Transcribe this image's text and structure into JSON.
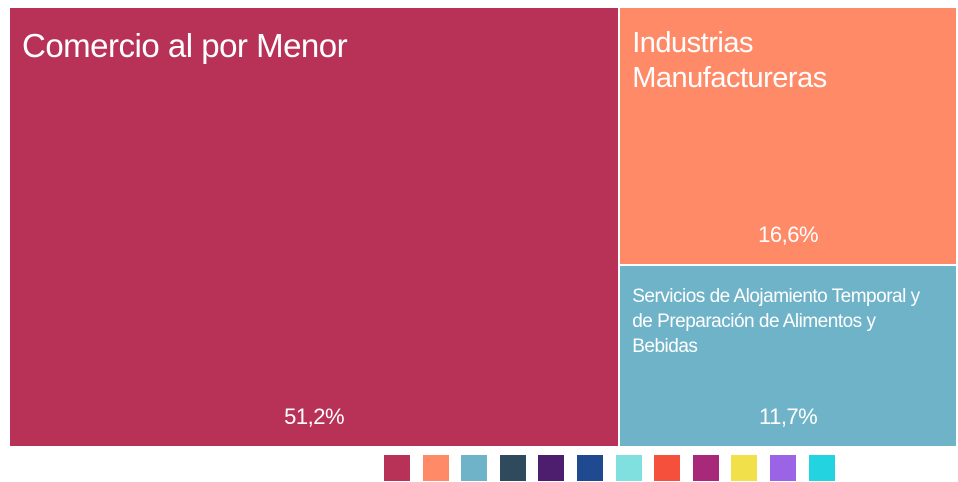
{
  "chart_data": {
    "type": "treemap",
    "categories": [
      "Comercio al por Menor",
      "Industrias Manufactureras",
      "Servicios de Alojamiento Temporal y de Preparación de Alimentos y Bebidas"
    ],
    "values": [
      51.2,
      16.6,
      11.7
    ],
    "value_labels": [
      "51,2%",
      "16,6%",
      "11,7%"
    ],
    "colors": [
      "#b83258",
      "#fe8a68",
      "#6fb3c9"
    ],
    "legend_colors": [
      "#b83258",
      "#fe8a68",
      "#6fb3c9",
      "#2e4a5c",
      "#4e1e6e",
      "#1f4a8f",
      "#7fe0df",
      "#f4503c",
      "#a8287a",
      "#f1e04a",
      "#9b63e5",
      "#23d3e0"
    ]
  }
}
